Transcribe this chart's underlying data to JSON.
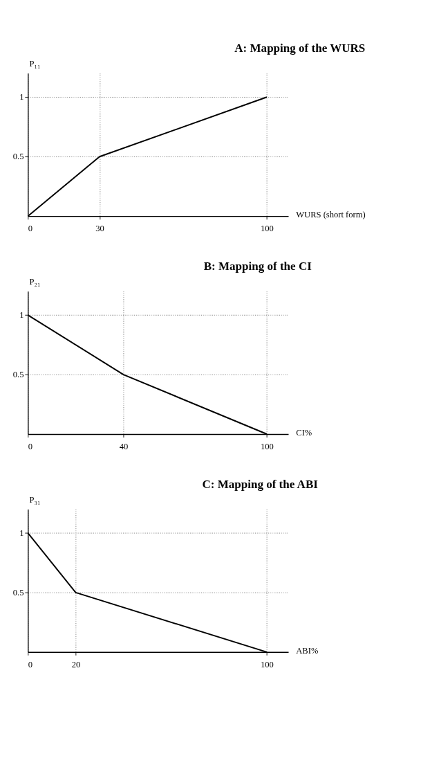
{
  "chart_data": [
    {
      "type": "line",
      "title": "A: Mapping of the WURS",
      "xlabel": "WURS (short form)",
      "ylabel": "P₁₁",
      "x": [
        0,
        30,
        100
      ],
      "values": [
        0,
        0.5,
        1
      ],
      "color": "#000000",
      "xlim": [
        0,
        109
      ],
      "ylim": [
        0,
        1.2
      ],
      "xticks": [
        0,
        30,
        100
      ],
      "yticks": [
        0.5,
        1
      ],
      "grid": true
    },
    {
      "type": "line",
      "title": "B: Mapping of the CI",
      "xlabel": "CI%",
      "ylabel": "P₂₁",
      "x": [
        0,
        40,
        100
      ],
      "values": [
        1,
        0.5,
        0
      ],
      "color": "#000000",
      "xlim": [
        0,
        109
      ],
      "ylim": [
        0,
        1.2
      ],
      "xticks": [
        0,
        40,
        100
      ],
      "yticks": [
        0.5,
        1
      ],
      "grid": true
    },
    {
      "type": "line",
      "title": "C: Mapping of the ABI",
      "xlabel": "ABI%",
      "ylabel": "P₃₁",
      "x": [
        0,
        20,
        100
      ],
      "values": [
        1,
        0.5,
        0
      ],
      "color": "#000000",
      "xlim": [
        0,
        109
      ],
      "ylim": [
        0,
        1.2
      ],
      "xticks": [
        0,
        20,
        100
      ],
      "yticks": [
        0.5,
        1
      ],
      "grid": true
    }
  ]
}
